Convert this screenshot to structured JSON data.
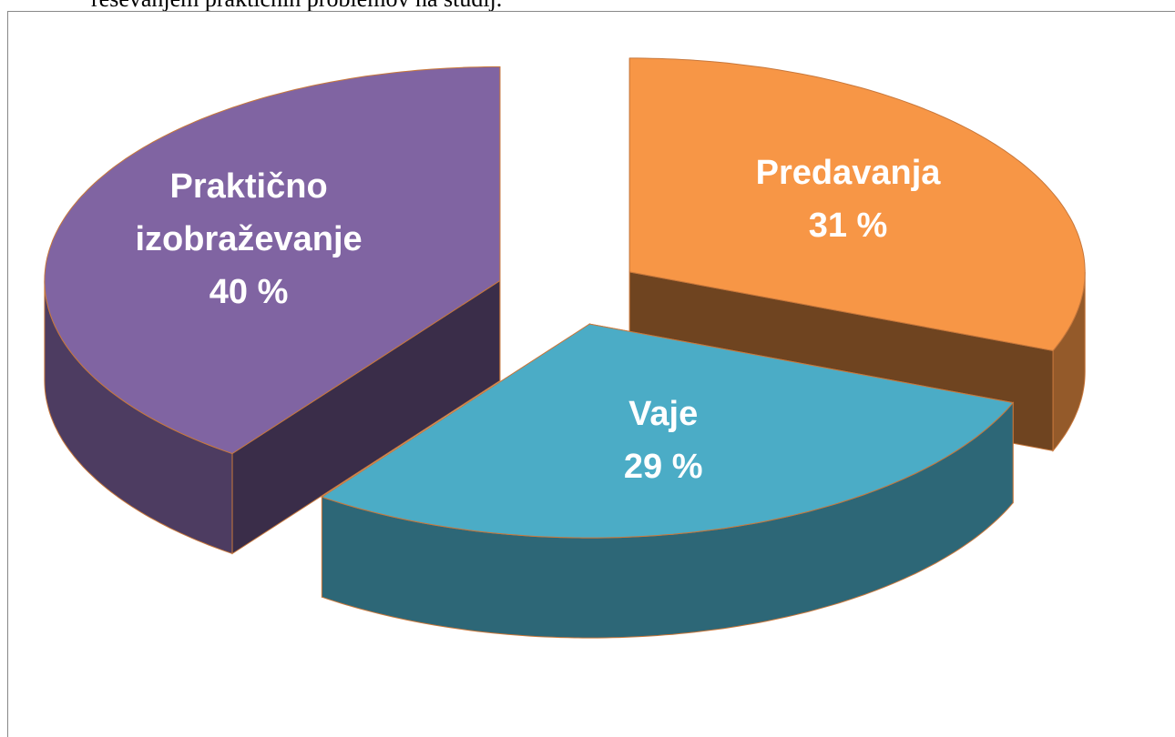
{
  "page_text": "reševanjem praktičnih problemov na študij.",
  "chart_data": {
    "type": "pie",
    "categories": [
      "Predavanja",
      "Vaje",
      "Praktično izobraževanje"
    ],
    "values": [
      31,
      29,
      40
    ],
    "value_labels": [
      "31 %",
      "29 %",
      "40 %"
    ],
    "colors": [
      "#f79646",
      "#4bacc6",
      "#8064a2"
    ]
  }
}
